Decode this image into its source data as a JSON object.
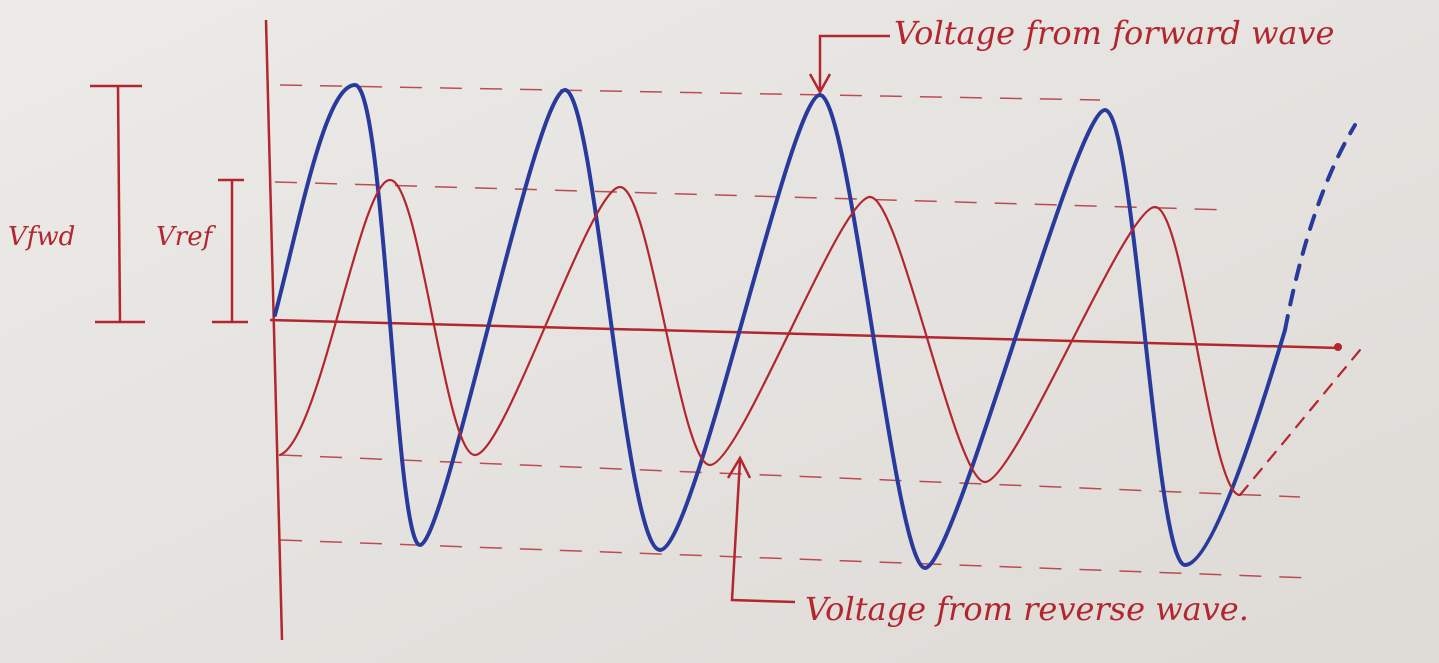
{
  "labels": {
    "v_fwd": "Vfwd",
    "v_ref": "Vref"
  },
  "annotations": {
    "forward": "Voltage from forward wave",
    "reverse": "Voltage from reverse wave."
  }
}
